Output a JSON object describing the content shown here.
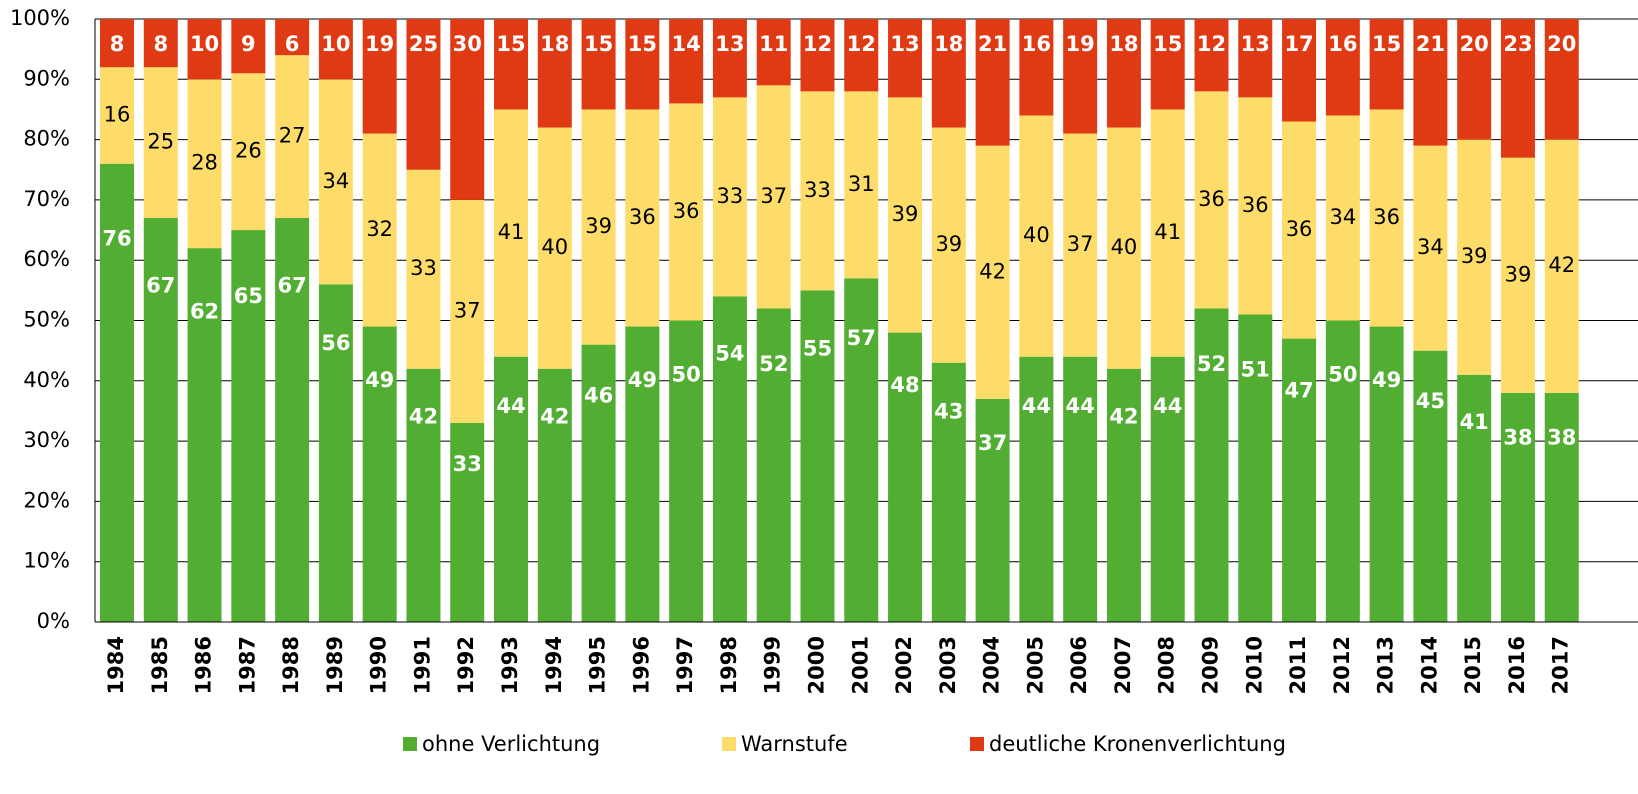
{
  "chart_data": {
    "type": "stacked-bar",
    "categories": [
      "1984",
      "1985",
      "1986",
      "1987",
      "1988",
      "1989",
      "1990",
      "1991",
      "1992",
      "1993",
      "1994",
      "1995",
      "1996",
      "1997",
      "1998",
      "1999",
      "2000",
      "2001",
      "2002",
      "2003",
      "2004",
      "2005",
      "2006",
      "2007",
      "2008",
      "2009",
      "2010",
      "2011",
      "2012",
      "2013",
      "2014",
      "2015",
      "2016",
      "2017"
    ],
    "series": [
      {
        "name": "ohne Verlichtung",
        "color": "#52ae32",
        "values": [
          76,
          67,
          62,
          65,
          67,
          56,
          49,
          42,
          33,
          44,
          42,
          46,
          49,
          50,
          54,
          52,
          55,
          57,
          48,
          43,
          37,
          44,
          44,
          42,
          44,
          52,
          51,
          47,
          50,
          49,
          45,
          41,
          38,
          38
        ]
      },
      {
        "name": "Warnstufe",
        "color": "#fddc6a",
        "values": [
          16,
          25,
          28,
          26,
          27,
          34,
          32,
          33,
          37,
          41,
          40,
          39,
          36,
          36,
          33,
          37,
          33,
          31,
          39,
          39,
          42,
          40,
          37,
          40,
          41,
          36,
          36,
          36,
          34,
          36,
          34,
          39,
          39,
          42
        ]
      },
      {
        "name": "deutliche Kronenverlichtung",
        "color": "#e03a14",
        "values": [
          8,
          8,
          10,
          9,
          6,
          10,
          19,
          25,
          30,
          15,
          18,
          15,
          15,
          14,
          13,
          11,
          12,
          12,
          13,
          18,
          21,
          16,
          19,
          18,
          15,
          12,
          13,
          17,
          16,
          15,
          21,
          20,
          23,
          20
        ]
      }
    ],
    "ylim": [
      0,
      100
    ],
    "yticks": [
      {
        "value": 0,
        "label": "0%"
      },
      {
        "value": 10,
        "label": "10%"
      },
      {
        "value": 20,
        "label": "20%"
      },
      {
        "value": 30,
        "label": "30%"
      },
      {
        "value": 40,
        "label": "40%"
      },
      {
        "value": 50,
        "label": "50%"
      },
      {
        "value": 60,
        "label": "60%"
      },
      {
        "value": 70,
        "label": "70%"
      },
      {
        "value": 80,
        "label": "80%"
      },
      {
        "value": 90,
        "label": "90%"
      },
      {
        "value": 100,
        "label": "100%"
      }
    ],
    "grid": true,
    "legend": "bottom"
  }
}
